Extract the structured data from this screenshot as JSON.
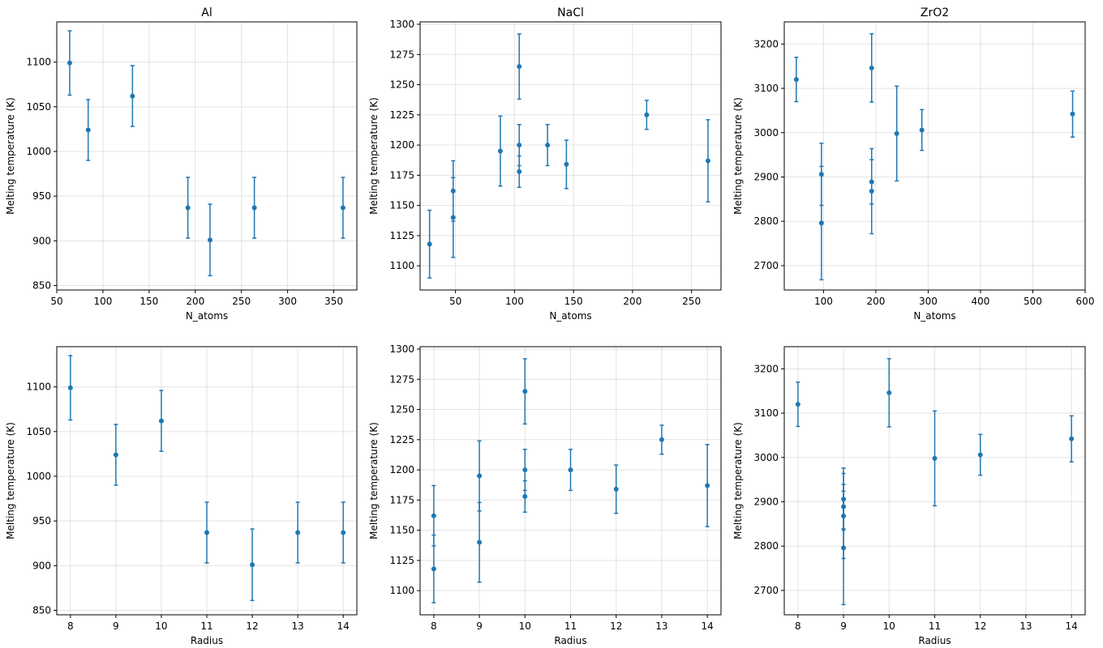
{
  "colors": {
    "series": "#1f77b4",
    "grid": "#b0b0b0"
  },
  "chart_data": [
    {
      "type": "scatter",
      "title": "Al",
      "xlabel": "N_atoms",
      "ylabel": "Melting temperature (K)",
      "xlim": [
        50,
        375
      ],
      "ylim": [
        845,
        1145
      ],
      "xticks": [
        50,
        100,
        150,
        200,
        250,
        300,
        350
      ],
      "yticks": [
        850,
        900,
        950,
        1000,
        1050,
        1100
      ],
      "grid": true,
      "error_bars": true,
      "points": [
        {
          "x": 64,
          "y": 1099,
          "err": 36
        },
        {
          "x": 84,
          "y": 1024,
          "err": 34
        },
        {
          "x": 132,
          "y": 1062,
          "err": 34
        },
        {
          "x": 192,
          "y": 937,
          "err": 34
        },
        {
          "x": 216,
          "y": 901,
          "err": 40
        },
        {
          "x": 264,
          "y": 937,
          "err": 34
        },
        {
          "x": 360,
          "y": 937,
          "err": 34
        }
      ]
    },
    {
      "type": "scatter",
      "title": "NaCl",
      "xlabel": "N_atoms",
      "ylabel": "Melting temperature (K)",
      "xlim": [
        20,
        275
      ],
      "ylim": [
        1080,
        1302
      ],
      "xticks": [
        50,
        100,
        150,
        200,
        250
      ],
      "yticks": [
        1100,
        1125,
        1150,
        1175,
        1200,
        1225,
        1250,
        1275,
        1300
      ],
      "grid": true,
      "error_bars": true,
      "points": [
        {
          "x": 28,
          "y": 1118,
          "err": 28
        },
        {
          "x": 48,
          "y": 1140,
          "err": 33
        },
        {
          "x": 48,
          "y": 1162,
          "err": 25
        },
        {
          "x": 88,
          "y": 1195,
          "err": 29
        },
        {
          "x": 104,
          "y": 1178,
          "err": 13
        },
        {
          "x": 104,
          "y": 1200,
          "err": 17
        },
        {
          "x": 104,
          "y": 1265,
          "err": 27
        },
        {
          "x": 128,
          "y": 1200,
          "err": 17
        },
        {
          "x": 144,
          "y": 1184,
          "err": 20
        },
        {
          "x": 212,
          "y": 1225,
          "err": 12
        },
        {
          "x": 264,
          "y": 1187,
          "err": 34
        }
      ]
    },
    {
      "type": "scatter",
      "title": "ZrO2",
      "xlabel": "N_atoms",
      "ylabel": "Melting temperature (K)",
      "xlim": [
        25,
        600
      ],
      "ylim": [
        2645,
        3250
      ],
      "xticks": [
        100,
        200,
        300,
        400,
        500,
        600
      ],
      "yticks": [
        2700,
        2800,
        2900,
        3000,
        3100,
        3200
      ],
      "grid": true,
      "error_bars": true,
      "points": [
        {
          "x": 48,
          "y": 3120,
          "err": 50
        },
        {
          "x": 96,
          "y": 2906,
          "err": 70
        },
        {
          "x": 96,
          "y": 2796,
          "err": 128
        },
        {
          "x": 192,
          "y": 3146,
          "err": 77
        },
        {
          "x": 192,
          "y": 2889,
          "err": 50
        },
        {
          "x": 192,
          "y": 2868,
          "err": 96
        },
        {
          "x": 240,
          "y": 2998,
          "err": 107
        },
        {
          "x": 288,
          "y": 3006,
          "err": 46
        },
        {
          "x": 576,
          "y": 3042,
          "err": 52
        }
      ]
    },
    {
      "type": "scatter",
      "title": "",
      "xlabel": "Radius",
      "ylabel": "Melting temperature (K)",
      "xlim": [
        7.7,
        14.3
      ],
      "ylim": [
        845,
        1145
      ],
      "xticks": [
        8,
        9,
        10,
        11,
        12,
        13,
        14
      ],
      "yticks": [
        850,
        900,
        950,
        1000,
        1050,
        1100
      ],
      "grid": true,
      "error_bars": true,
      "points": [
        {
          "x": 8,
          "y": 1099,
          "err": 36
        },
        {
          "x": 9,
          "y": 1024,
          "err": 34
        },
        {
          "x": 10,
          "y": 1062,
          "err": 34
        },
        {
          "x": 11,
          "y": 937,
          "err": 34
        },
        {
          "x": 12,
          "y": 901,
          "err": 40
        },
        {
          "x": 13,
          "y": 937,
          "err": 34
        },
        {
          "x": 14,
          "y": 937,
          "err": 34
        }
      ]
    },
    {
      "type": "scatter",
      "title": "",
      "xlabel": "Radius",
      "ylabel": "Melting temperature (K)",
      "xlim": [
        7.7,
        14.3
      ],
      "ylim": [
        1080,
        1302
      ],
      "xticks": [
        8,
        9,
        10,
        11,
        12,
        13,
        14
      ],
      "yticks": [
        1100,
        1125,
        1150,
        1175,
        1200,
        1225,
        1250,
        1275,
        1300
      ],
      "grid": true,
      "error_bars": true,
      "points": [
        {
          "x": 8,
          "y": 1118,
          "err": 28
        },
        {
          "x": 8,
          "y": 1162,
          "err": 25
        },
        {
          "x": 9,
          "y": 1140,
          "err": 33
        },
        {
          "x": 9,
          "y": 1195,
          "err": 29
        },
        {
          "x": 10,
          "y": 1178,
          "err": 13
        },
        {
          "x": 10,
          "y": 1200,
          "err": 17
        },
        {
          "x": 10,
          "y": 1265,
          "err": 27
        },
        {
          "x": 11,
          "y": 1200,
          "err": 17
        },
        {
          "x": 12,
          "y": 1184,
          "err": 20
        },
        {
          "x": 13,
          "y": 1225,
          "err": 12
        },
        {
          "x": 14,
          "y": 1187,
          "err": 34
        }
      ]
    },
    {
      "type": "scatter",
      "title": "",
      "xlabel": "Radius",
      "ylabel": "Melting temperature (K)",
      "xlim": [
        7.7,
        14.3
      ],
      "ylim": [
        2645,
        3250
      ],
      "xticks": [
        8,
        9,
        10,
        11,
        12,
        13,
        14
      ],
      "yticks": [
        2700,
        2800,
        2900,
        3000,
        3100,
        3200
      ],
      "grid": true,
      "error_bars": true,
      "points": [
        {
          "x": 8,
          "y": 3120,
          "err": 50
        },
        {
          "x": 9,
          "y": 2906,
          "err": 70
        },
        {
          "x": 9,
          "y": 2796,
          "err": 128
        },
        {
          "x": 9,
          "y": 2889,
          "err": 50
        },
        {
          "x": 9,
          "y": 2868,
          "err": 96
        },
        {
          "x": 10,
          "y": 3146,
          "err": 77
        },
        {
          "x": 11,
          "y": 2998,
          "err": 107
        },
        {
          "x": 12,
          "y": 3006,
          "err": 46
        },
        {
          "x": 14,
          "y": 3042,
          "err": 52
        }
      ]
    }
  ]
}
